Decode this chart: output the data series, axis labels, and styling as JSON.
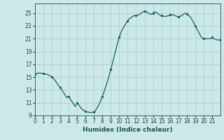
{
  "title": "",
  "xlabel": "Humidex (Indice chaleur)",
  "xlim": [
    0,
    22
  ],
  "ylim": [
    9,
    26.5
  ],
  "yticks": [
    9,
    11,
    13,
    15,
    17,
    19,
    21,
    23,
    25
  ],
  "xticks": [
    0,
    1,
    2,
    3,
    4,
    5,
    6,
    7,
    8,
    9,
    10,
    11,
    12,
    13,
    14,
    15,
    16,
    17,
    18,
    19,
    20,
    21
  ],
  "bg_color": "#cce8e8",
  "grid_color": "#aacccc",
  "line_color": "#1a6060",
  "spine_color": "#336666",
  "tick_color": "#224444",
  "label_color": "#1a5555",
  "x_data": [
    0,
    0.2,
    0.4,
    0.6,
    0.8,
    1.0,
    1.2,
    1.4,
    1.6,
    1.8,
    2.0,
    2.2,
    2.4,
    2.6,
    2.8,
    3.0,
    3.2,
    3.4,
    3.6,
    3.8,
    4.0,
    4.2,
    4.4,
    4.6,
    4.8,
    5.0,
    5.2,
    5.4,
    5.6,
    5.8,
    6.0,
    6.2,
    6.4,
    6.6,
    6.8,
    7.0,
    7.2,
    7.4,
    7.6,
    7.8,
    8.0,
    8.2,
    8.4,
    8.6,
    8.8,
    9.0,
    9.2,
    9.4,
    9.6,
    9.8,
    10.0,
    10.2,
    10.4,
    10.6,
    10.8,
    11.0,
    11.2,
    11.4,
    11.6,
    11.8,
    12.0,
    12.2,
    12.4,
    12.6,
    12.8,
    13.0,
    13.2,
    13.4,
    13.6,
    13.8,
    14.0,
    14.2,
    14.4,
    14.6,
    14.8,
    15.0,
    15.2,
    15.4,
    15.6,
    15.8,
    16.0,
    16.2,
    16.4,
    16.6,
    16.8,
    17.0,
    17.2,
    17.4,
    17.6,
    17.8,
    18.0,
    18.2,
    18.4,
    18.6,
    18.8,
    19.0,
    19.2,
    19.4,
    19.6,
    19.8,
    20.0,
    20.2,
    20.4,
    20.6,
    20.8,
    21.0,
    21.2,
    21.4,
    21.6,
    21.8,
    22.0
  ],
  "y_data": [
    15.5,
    15.55,
    15.6,
    15.65,
    15.6,
    15.55,
    15.5,
    15.45,
    15.35,
    15.2,
    15.05,
    14.85,
    14.5,
    14.1,
    13.7,
    13.4,
    13.0,
    12.6,
    12.2,
    11.8,
    12.0,
    11.6,
    11.2,
    10.8,
    10.4,
    11.0,
    10.7,
    10.3,
    10.0,
    9.8,
    9.65,
    9.55,
    9.5,
    9.45,
    9.5,
    9.55,
    9.8,
    10.2,
    10.7,
    11.3,
    12.0,
    12.7,
    13.5,
    14.3,
    15.2,
    16.2,
    17.2,
    18.2,
    19.3,
    20.3,
    21.2,
    22.0,
    22.5,
    23.0,
    23.4,
    23.8,
    24.1,
    24.3,
    24.5,
    24.6,
    24.6,
    24.7,
    24.8,
    25.0,
    25.2,
    25.3,
    25.2,
    25.0,
    24.9,
    24.8,
    25.0,
    25.2,
    25.1,
    24.9,
    24.7,
    24.6,
    24.5,
    24.5,
    24.5,
    24.6,
    24.7,
    24.8,
    24.7,
    24.6,
    24.5,
    24.4,
    24.5,
    24.6,
    24.8,
    25.0,
    24.9,
    24.7,
    24.4,
    24.0,
    23.5,
    23.0,
    22.5,
    22.0,
    21.5,
    21.1,
    21.0,
    21.0,
    21.0,
    21.0,
    21.0,
    21.2,
    21.0,
    20.9,
    20.8,
    20.8,
    20.8
  ]
}
